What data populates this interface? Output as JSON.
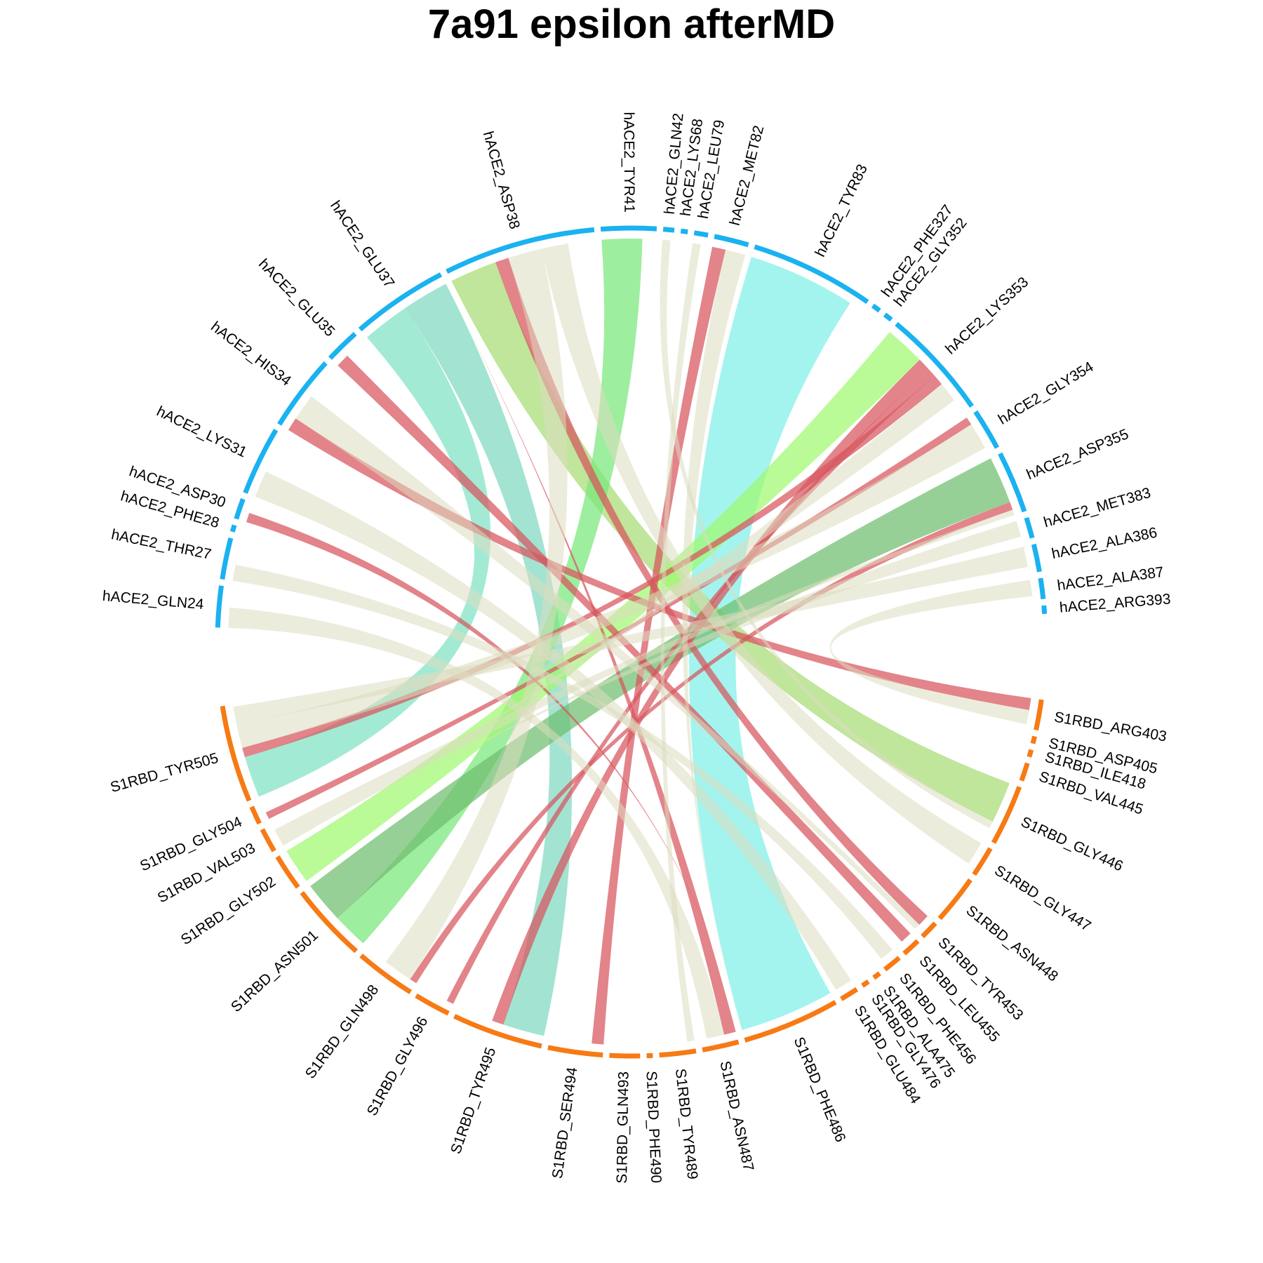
{
  "chart_data": {
    "type": "chord",
    "title": "7a91 epsilon afterMD",
    "groups": {
      "hACE2": {
        "color": "#1ab2f0"
      },
      "S1RBD": {
        "color": "#f77a14"
      }
    },
    "sectors": [
      {
        "name": "hACE2_GLN24",
        "group": "hACE2",
        "size": 3
      },
      {
        "name": "hACE2_THR27",
        "group": "hACE2",
        "size": 3
      },
      {
        "name": "hACE2_PHE28",
        "group": "hACE2",
        "size": 0.5
      },
      {
        "name": "hACE2_ASP30",
        "group": "hACE2",
        "size": 1.5
      },
      {
        "name": "hACE2_LYS31",
        "group": "hACE2",
        "size": 5
      },
      {
        "name": "hACE2_HIS34",
        "group": "hACE2",
        "size": 5.5
      },
      {
        "name": "hACE2_GLU35",
        "group": "hACE2",
        "size": 2.5
      },
      {
        "name": "hACE2_GLU37",
        "group": "hACE2",
        "size": 7
      },
      {
        "name": "hACE2_ASP38",
        "group": "hACE2",
        "size": 11
      },
      {
        "name": "hACE2_TYR41",
        "group": "hACE2",
        "size": 4
      },
      {
        "name": "hACE2_GLN42",
        "group": "hACE2",
        "size": 0.8
      },
      {
        "name": "hACE2_LYS68",
        "group": "hACE2",
        "size": 0.5
      },
      {
        "name": "hACE2_LEU79",
        "group": "hACE2",
        "size": 1
      },
      {
        "name": "hACE2_MET82",
        "group": "hACE2",
        "size": 2.5
      },
      {
        "name": "hACE2_TYR83",
        "group": "hACE2",
        "size": 9
      },
      {
        "name": "hACE2_PHE327",
        "group": "hACE2",
        "size": 0.6
      },
      {
        "name": "hACE2_GLY352",
        "group": "hACE2",
        "size": 0.6
      },
      {
        "name": "hACE2_LYS353",
        "group": "hACE2",
        "size": 8
      },
      {
        "name": "hACE2_GLY354",
        "group": "hACE2",
        "size": 3
      },
      {
        "name": "hACE2_ASP355",
        "group": "hACE2",
        "size": 4.5
      },
      {
        "name": "hACE2_MET383",
        "group": "hACE2",
        "size": 1.5
      },
      {
        "name": "hACE2_ALA386",
        "group": "hACE2",
        "size": 2
      },
      {
        "name": "hACE2_ALA387",
        "group": "hACE2",
        "size": 1.5
      },
      {
        "name": "hACE2_ARG393",
        "group": "hACE2",
        "size": 0.6
      },
      {
        "name": "S1RBD_ARG403",
        "group": "S1RBD",
        "size": 2.5
      },
      {
        "name": "S1RBD_ASP405",
        "group": "S1RBD",
        "size": 0.6
      },
      {
        "name": "S1RBD_ILE418",
        "group": "S1RBD",
        "size": 0.6
      },
      {
        "name": "S1RBD_VAL445",
        "group": "S1RBD",
        "size": 1.5
      },
      {
        "name": "S1RBD_GLY446",
        "group": "S1RBD",
        "size": 5
      },
      {
        "name": "S1RBD_GLY447",
        "group": "S1RBD",
        "size": 2.5
      },
      {
        "name": "S1RBD_ASN448",
        "group": "S1RBD",
        "size": 4
      },
      {
        "name": "S1RBD_TYR453",
        "group": "S1RBD",
        "size": 1.5
      },
      {
        "name": "S1RBD_LEU455",
        "group": "S1RBD",
        "size": 1.5
      },
      {
        "name": "S1RBD_PHE456",
        "group": "S1RBD",
        "size": 1.5
      },
      {
        "name": "S1RBD_ALA475",
        "group": "S1RBD",
        "size": 0.6
      },
      {
        "name": "S1RBD_GLY476",
        "group": "S1RBD",
        "size": 0.6
      },
      {
        "name": "S1RBD_GLU484",
        "group": "S1RBD",
        "size": 1.5
      },
      {
        "name": "S1RBD_PHE486",
        "group": "S1RBD",
        "size": 8
      },
      {
        "name": "S1RBD_ASN487",
        "group": "S1RBD",
        "size": 3
      },
      {
        "name": "S1RBD_TYR489",
        "group": "S1RBD",
        "size": 3
      },
      {
        "name": "S1RBD_PHE490",
        "group": "S1RBD",
        "size": 0.5
      },
      {
        "name": "S1RBD_GLN493",
        "group": "S1RBD",
        "size": 2.5
      },
      {
        "name": "S1RBD_SER494",
        "group": "S1RBD",
        "size": 4.5
      },
      {
        "name": "S1RBD_TYR495",
        "group": "S1RBD",
        "size": 7.5
      },
      {
        "name": "S1RBD_GLY496",
        "group": "S1RBD",
        "size": 3
      },
      {
        "name": "S1RBD_GLN498",
        "group": "S1RBD",
        "size": 5
      },
      {
        "name": "S1RBD_ASN501",
        "group": "S1RBD",
        "size": 6.5
      },
      {
        "name": "S1RBD_GLY502",
        "group": "S1RBD",
        "size": 3
      },
      {
        "name": "S1RBD_VAL503",
        "group": "S1RBD",
        "size": 2
      },
      {
        "name": "S1RBD_GLY504",
        "group": "S1RBD",
        "size": 1.5
      },
      {
        "name": "S1RBD_TYR505",
        "group": "S1RBD",
        "size": 8
      }
    ],
    "links": [
      {
        "from": "hACE2_TYR83",
        "to": "S1RBD_PHE486",
        "value": 8,
        "color": "#7ff0e8"
      },
      {
        "from": "hACE2_GLU37",
        "to": "S1RBD_TYR505",
        "value": 3.5,
        "color": "#80e2c4"
      },
      {
        "from": "hACE2_GLU37",
        "to": "S1RBD_TYR495",
        "value": 3.5,
        "color": "#80d8c0"
      },
      {
        "from": "hACE2_ASP38",
        "to": "S1RBD_GLY446",
        "value": 3.5,
        "color": "#a6dc74"
      },
      {
        "from": "hACE2_TYR41",
        "to": "S1RBD_ASN501",
        "value": 3,
        "color": "#78e87a"
      },
      {
        "from": "hACE2_LYS353",
        "to": "S1RBD_GLY502",
        "value": 3,
        "color": "#9ffa70"
      },
      {
        "from": "hACE2_ASP355",
        "to": "S1RBD_ASN501",
        "value": 3.5,
        "color": "#6fbe6f"
      },
      {
        "from": "hACE2_ASP38",
        "to": "S1RBD_TYR453",
        "value": 1,
        "color": "#d7545d"
      },
      {
        "from": "hACE2_GLU37",
        "to": "S1RBD_ASN487",
        "value": 1,
        "color": "#d7545d"
      },
      {
        "from": "hACE2_GLU35",
        "to": "S1RBD_LEU455",
        "value": 1,
        "color": "#d7545d"
      },
      {
        "from": "hACE2_HIS34",
        "to": "S1RBD_ARG403",
        "value": 1,
        "color": "#d7545d"
      },
      {
        "from": "hACE2_ASP30",
        "to": "S1RBD_PHE486",
        "value": 0.7,
        "color": "#d7545d"
      },
      {
        "from": "hACE2_MET82",
        "to": "S1RBD_SER494",
        "value": 1,
        "color": "#d7545d"
      },
      {
        "from": "hACE2_LYS353",
        "to": "S1RBD_TYR495",
        "value": 1,
        "color": "#d7545d"
      },
      {
        "from": "hACE2_LYS353",
        "to": "S1RBD_GLY496",
        "value": 0.6,
        "color": "#d7545d"
      },
      {
        "from": "hACE2_LYS353",
        "to": "S1RBD_TYR505",
        "value": 0.8,
        "color": "#d7545d"
      },
      {
        "from": "hACE2_GLY354",
        "to": "S1RBD_GLY504",
        "value": 0.6,
        "color": "#d7545d"
      },
      {
        "from": "hACE2_ASP355",
        "to": "S1RBD_GLN498",
        "value": 0.6,
        "color": "#d7545d"
      },
      {
        "from": "hACE2_GLN24",
        "to": "S1RBD_ASN487",
        "value": 1.5,
        "color": "#dcdcc0"
      },
      {
        "from": "hACE2_THR27",
        "to": "S1RBD_PHE456",
        "value": 1.2,
        "color": "#dcdcc0"
      },
      {
        "from": "hACE2_LYS31",
        "to": "S1RBD_GLU484",
        "value": 2,
        "color": "#dcdcc0"
      },
      {
        "from": "hACE2_HIS34",
        "to": "S1RBD_TYR453",
        "value": 2,
        "color": "#dcdcc0"
      },
      {
        "from": "hACE2_ASP38",
        "to": "S1RBD_GLN498",
        "value": 2.5,
        "color": "#dcdcc0"
      },
      {
        "from": "hACE2_ASP38",
        "to": "S1RBD_GLY447",
        "value": 2,
        "color": "#dcdcc0"
      },
      {
        "from": "hACE2_GLN42",
        "to": "S1RBD_GLY446",
        "value": 0.6,
        "color": "#dcdcc0"
      },
      {
        "from": "hACE2_LEU79",
        "to": "S1RBD_TYR489",
        "value": 0.6,
        "color": "#dcdcc0"
      },
      {
        "from": "hACE2_MET82",
        "to": "S1RBD_PHE486",
        "value": 1.5,
        "color": "#dcdcc0"
      },
      {
        "from": "hACE2_LYS353",
        "to": "S1RBD_GLY502",
        "value": 1.5,
        "color": "#dcdcc0"
      },
      {
        "from": "hACE2_GLY354",
        "to": "S1RBD_TYR505",
        "value": 2,
        "color": "#dcdcc0"
      },
      {
        "from": "hACE2_ASP355",
        "to": "S1RBD_VAL503",
        "value": 1.5,
        "color": "#dcdcc0"
      },
      {
        "from": "hACE2_MET383",
        "to": "S1RBD_GLY502",
        "value": 1.2,
        "color": "#dcdcc0"
      },
      {
        "from": "hACE2_ALA386",
        "to": "S1RBD_TYR505",
        "value": 1.5,
        "color": "#dcdcc0"
      },
      {
        "from": "hACE2_ALA387",
        "to": "S1RBD_ARG403",
        "value": 1.2,
        "color": "#dcdcc0"
      }
    ]
  }
}
